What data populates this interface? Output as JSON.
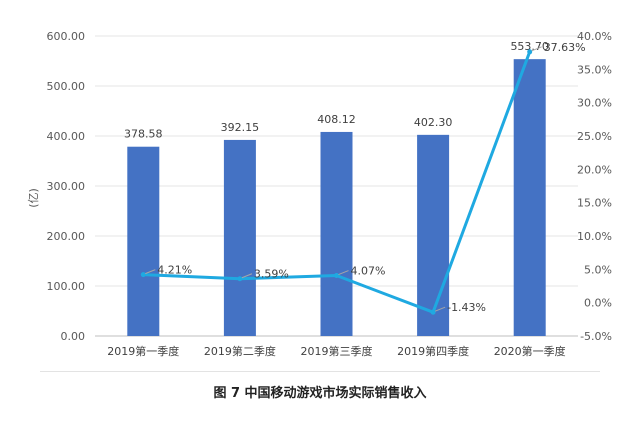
{
  "chart_data": {
    "type": "bar",
    "categories": [
      "2019第一季度",
      "2019第二季度",
      "2019第三季度",
      "2019第四季度",
      "2020第一季度"
    ],
    "series": [
      {
        "values": [
          378.58,
          392.15,
          408.12,
          402.3,
          553.7
        ],
        "labels": [
          "378.58",
          "392.15",
          "408.12",
          "402.30",
          "553.70"
        ],
        "color": "#4472C4",
        "axis": "left",
        "kind": "bar"
      },
      {
        "values": [
          4.21,
          3.59,
          4.07,
          -1.43,
          37.63
        ],
        "labels": [
          "4.21%",
          "3.59%",
          "4.07%",
          "-1.43%",
          "37.63%"
        ],
        "color": "#1FA9E1",
        "axis": "right",
        "kind": "line"
      }
    ],
    "ylabel": "(亿)",
    "ylim": [
      0,
      600
    ],
    "y2lim": [
      -5,
      40
    ],
    "yticks": [
      "0.00",
      "100.00",
      "200.00",
      "300.00",
      "400.00",
      "500.00",
      "600.00"
    ],
    "y2ticks": [
      "-5.0%",
      "0.0%",
      "5.0%",
      "10.0%",
      "15.0%",
      "20.0%",
      "25.0%",
      "30.0%",
      "35.0%",
      "40.0%"
    ],
    "grid": true,
    "caption": "图 7  中国移动游戏市场实际销售收入"
  }
}
